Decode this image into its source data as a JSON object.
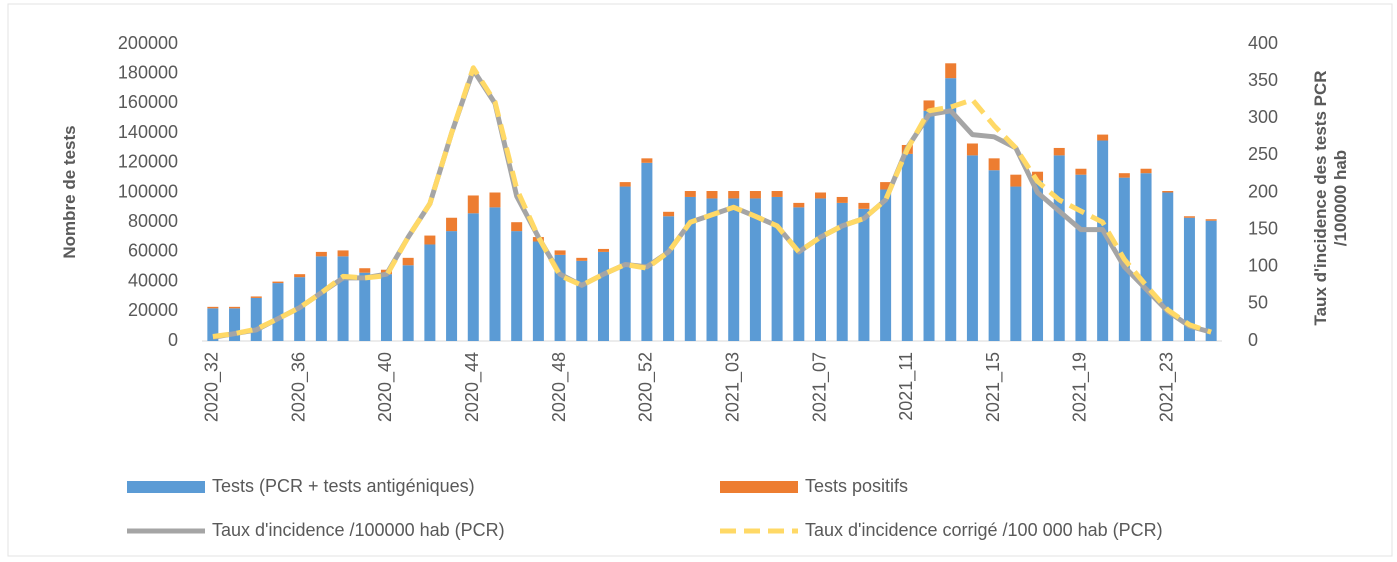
{
  "chart_data": {
    "type": "combo",
    "y_label": "Nombre de tests",
    "y2_label": "Taux d'incidence des tests PCR /100000 hab",
    "categories": [
      "2020_32",
      null,
      null,
      null,
      "2020_36",
      null,
      null,
      null,
      "2020_40",
      null,
      null,
      null,
      "2020_44",
      null,
      null,
      null,
      "2020_48",
      null,
      null,
      null,
      "2020_52",
      null,
      null,
      null,
      "2021_03",
      null,
      null,
      null,
      "2021_07",
      null,
      null,
      null,
      "2021_11",
      null,
      null,
      null,
      "2021_15",
      null,
      null,
      null,
      "2021_19",
      null,
      null,
      null,
      "2021_23",
      null,
      null
    ],
    "series": [
      {
        "name": "Tests (PCR + tests antigéniques)",
        "type": "bar",
        "color": "#5b9bd5",
        "values": [
          22000,
          22000,
          29000,
          39000,
          43000,
          57000,
          57000,
          46000,
          45000,
          51000,
          65000,
          74000,
          86000,
          90000,
          74000,
          67000,
          58000,
          54000,
          60000,
          104000,
          120000,
          84000,
          97000,
          96000,
          96000,
          96000,
          97000,
          90000,
          96000,
          93000,
          89000,
          102000,
          126000,
          155000,
          177000,
          125000,
          115000,
          104000,
          108000,
          125000,
          112000,
          135000,
          110000,
          113000,
          100000,
          83000,
          81000
        ]
      },
      {
        "name": "Tests positifs",
        "type": "bar",
        "color": "#ed7d31",
        "values": [
          1000,
          1000,
          1000,
          1000,
          2000,
          3000,
          4000,
          3000,
          3000,
          5000,
          6000,
          9000,
          12000,
          10000,
          6000,
          3000,
          3000,
          2000,
          2000,
          3000,
          3000,
          3000,
          4000,
          5000,
          5000,
          5000,
          4000,
          3000,
          4000,
          4000,
          4000,
          5000,
          6000,
          7000,
          10000,
          8000,
          8000,
          8000,
          6000,
          5000,
          4000,
          4000,
          3000,
          3000,
          1000,
          1000,
          1000
        ]
      },
      {
        "name": "Taux d'incidence /100000 hab (PCR)",
        "type": "line",
        "axis": "y2",
        "color": "#a5a5a5",
        "dashed": false,
        "values": [
          5,
          10,
          15,
          30,
          45,
          65,
          85,
          85,
          90,
          140,
          185,
          280,
          365,
          320,
          195,
          140,
          90,
          75,
          90,
          103,
          100,
          120,
          160,
          170,
          180,
          168,
          155,
          120,
          140,
          155,
          165,
          190,
          260,
          305,
          310,
          278,
          275,
          260,
          200,
          175,
          150,
          150,
          100,
          70,
          40,
          20,
          12
        ]
      },
      {
        "name": "Taux d'incidence corrigé /100 000 hab (PCR)",
        "type": "line",
        "axis": "y2",
        "color": "#ffd966",
        "dashed": true,
        "values": [
          6,
          10,
          16,
          30,
          45,
          65,
          87,
          85,
          88,
          140,
          185,
          280,
          368,
          322,
          205,
          140,
          88,
          75,
          90,
          103,
          98,
          120,
          160,
          170,
          180,
          168,
          155,
          120,
          140,
          155,
          165,
          190,
          258,
          310,
          315,
          325,
          290,
          260,
          215,
          190,
          175,
          160,
          110,
          75,
          42,
          22,
          12
        ]
      }
    ],
    "ylim": [
      0,
      200000
    ],
    "yticks": [
      0,
      20000,
      40000,
      60000,
      80000,
      100000,
      120000,
      140000,
      160000,
      180000,
      200000
    ],
    "y2lim": [
      0,
      400
    ],
    "y2ticks": [
      0,
      50,
      100,
      150,
      200,
      250,
      300,
      350,
      400
    ],
    "grid": false
  }
}
